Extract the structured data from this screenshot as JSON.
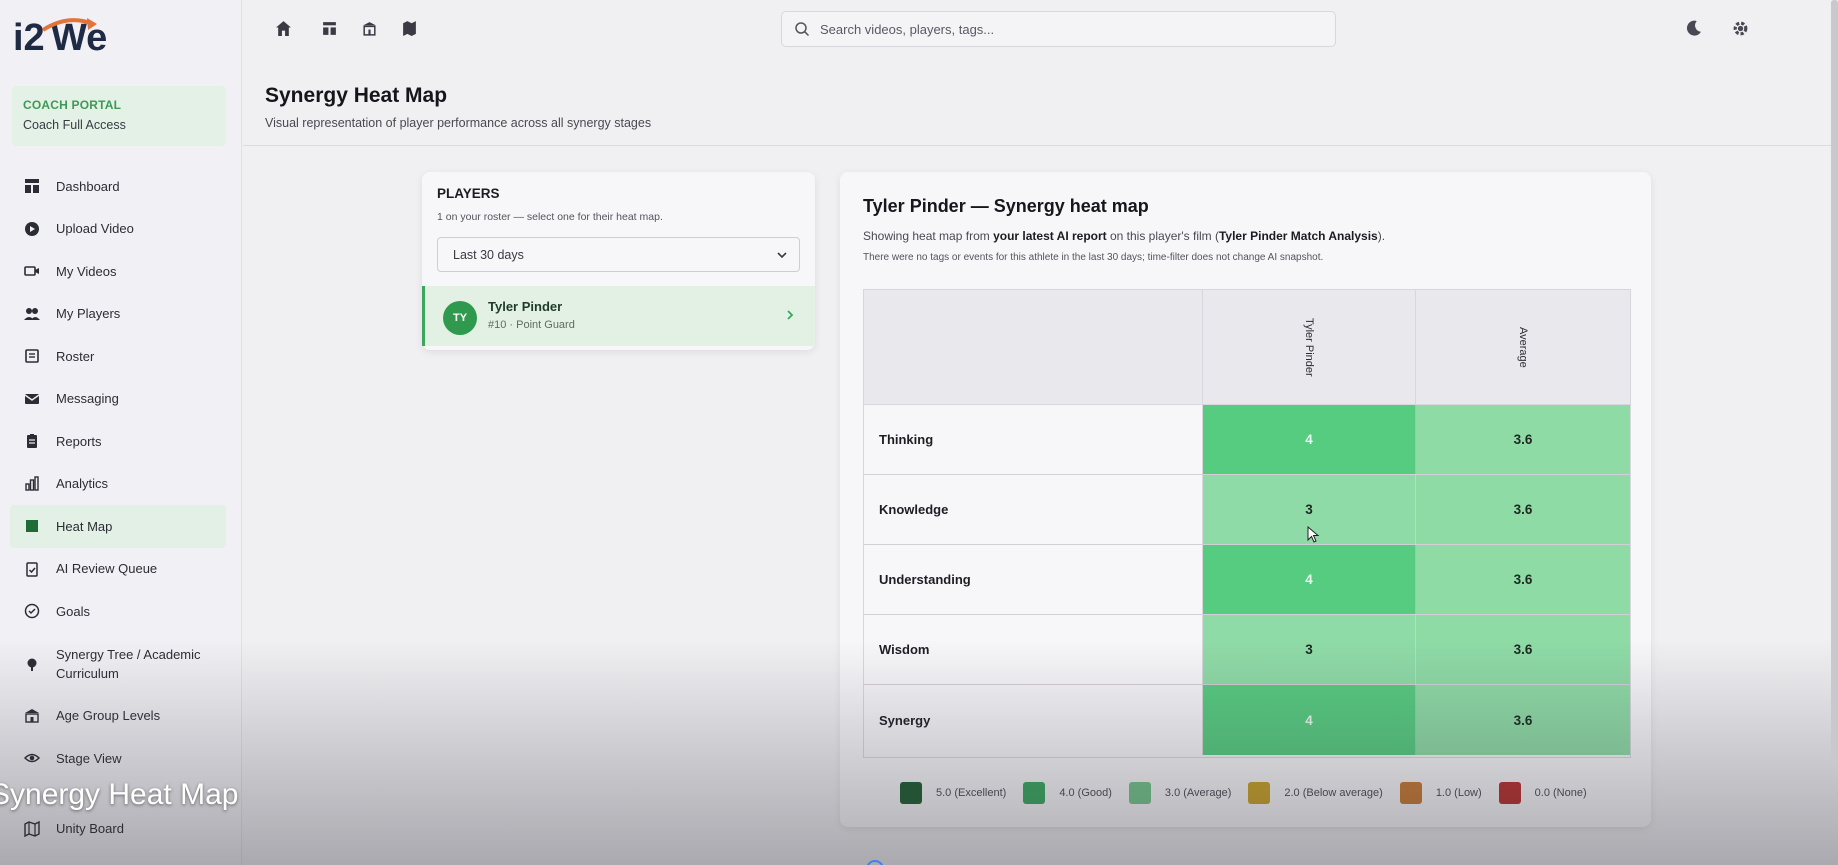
{
  "app": {
    "logo_text": "i2We",
    "portal_title": "COACH PORTAL",
    "portal_subtitle": "Coach Full Access"
  },
  "sidebar": {
    "items": [
      {
        "label": "Dashboard",
        "icon": "dashboard-icon"
      },
      {
        "label": "Upload Video",
        "icon": "upload-video-icon"
      },
      {
        "label": "My Videos",
        "icon": "video-icon"
      },
      {
        "label": "My Players",
        "icon": "players-icon"
      },
      {
        "label": "Roster",
        "icon": "roster-icon"
      },
      {
        "label": "Messaging",
        "icon": "mail-icon"
      },
      {
        "label": "Reports",
        "icon": "clipboard-icon"
      },
      {
        "label": "Analytics",
        "icon": "bar-chart-icon"
      },
      {
        "label": "Heat Map",
        "icon": "heat-map-icon",
        "active": true
      },
      {
        "label": "AI Review Queue",
        "icon": "clipboard-check-icon"
      },
      {
        "label": "Goals",
        "icon": "check-circle-icon"
      },
      {
        "label": "Synergy Tree / Academic Curriculum",
        "icon": "tree-icon"
      },
      {
        "label": "Age Group Levels",
        "icon": "school-icon"
      },
      {
        "label": "Stage View",
        "icon": "eye-icon"
      },
      {
        "label": "Unity Board",
        "icon": "map-icon"
      }
    ]
  },
  "topbar": {
    "icons": [
      "home-icon",
      "layout-icon",
      "building-icon",
      "map-icon"
    ],
    "search_placeholder": "Search videos, players, tags...",
    "right_icons": [
      "moon-icon",
      "gear-icon"
    ]
  },
  "page": {
    "title": "Synergy Heat Map",
    "subtitle": "Visual representation of player performance across all synergy stages"
  },
  "players": {
    "title": "PLAYERS",
    "subtitle": "1 on your roster — select one for their heat map.",
    "filter_value": "Last 30 days",
    "list": [
      {
        "initials": "TY",
        "name": "Tyler Pinder",
        "meta": "#10 · Point Guard"
      }
    ]
  },
  "heatmap": {
    "title": "Tyler Pinder — Synergy heat map",
    "desc_prefix": "Showing heat map from ",
    "desc_bold1": "your latest AI report",
    "desc_mid": " on this player's film (",
    "desc_bold2": "Tyler Pinder Match Analysis",
    "desc_suffix": ").",
    "note": "There were no tags or events for this athlete in the last 30 days; time-filter does not change AI snapshot.",
    "columns": [
      "Tyler Pinder",
      "Average"
    ],
    "rows": [
      {
        "label": "Thinking",
        "player": "4",
        "average": "3.6"
      },
      {
        "label": "Knowledge",
        "player": "3",
        "average": "3.6"
      },
      {
        "label": "Understanding",
        "player": "4",
        "average": "3.6"
      },
      {
        "label": "Wisdom",
        "player": "3",
        "average": "3.6"
      },
      {
        "label": "Synergy",
        "player": "4",
        "average": "3.6"
      }
    ],
    "cell_colors": {
      "player": [
        "#56cc80",
        "#8fdba7",
        "#56cc80",
        "#8fdba7",
        "#56cc80"
      ],
      "average": [
        "#8edba6",
        "#8edba6",
        "#8edba6",
        "#8edba6",
        "#8edba6"
      ]
    },
    "legend": [
      {
        "label": "5.0 (Excellent)",
        "color": "#1f5e32"
      },
      {
        "label": "4.0 (Good)",
        "color": "#3aa860"
      },
      {
        "label": "3.0 (Average)",
        "color": "#74c58c"
      },
      {
        "label": "2.0 (Below average)",
        "color": "#c9a227"
      },
      {
        "label": "1.0 (Low)",
        "color": "#c77a35"
      },
      {
        "label": "0.0 (None)",
        "color": "#b8312f"
      }
    ]
  },
  "overlay": {
    "caption": "Synergy Heat Map"
  },
  "colors": {
    "accent": "#3aa85b",
    "active_bg": "#e2f0e5"
  }
}
